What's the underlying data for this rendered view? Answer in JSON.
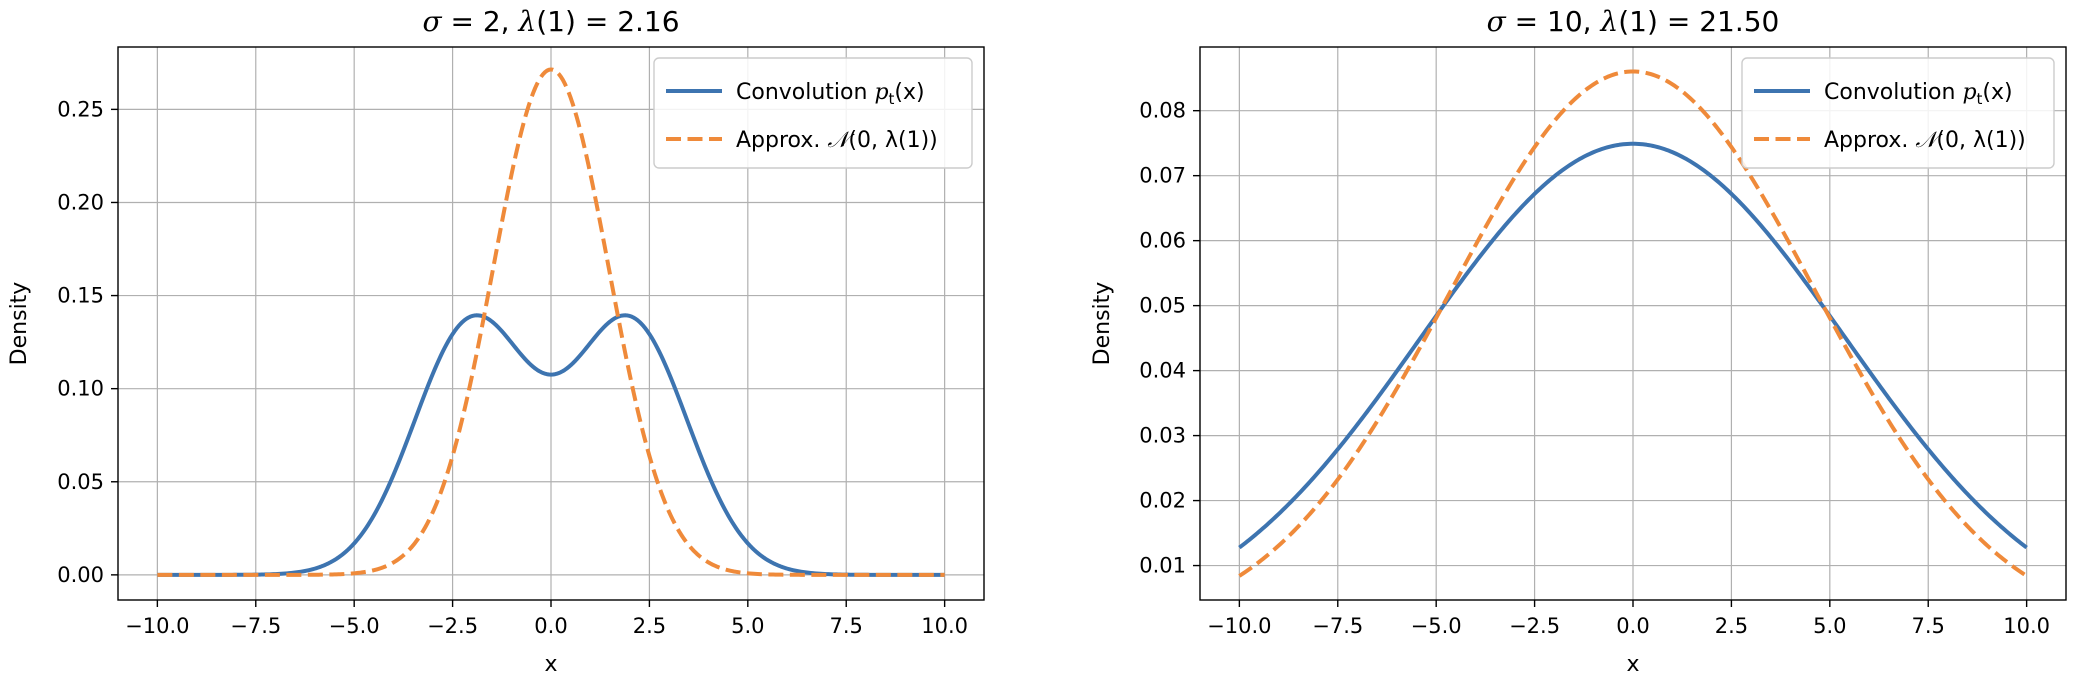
{
  "chart_data": [
    {
      "type": "line",
      "title": {
        "sigma_symbol": "σ",
        "sigma_value": "2",
        "lambda_symbol": "λ",
        "lambda_arg": "1",
        "lambda_value": "2.16"
      },
      "xlabel": "x",
      "ylabel": "Density",
      "xlim": [
        -11.0,
        11.0
      ],
      "ylim": [
        -0.0135,
        0.2835
      ],
      "grid": true,
      "legend_position": "upper right",
      "xticks": [
        -10.0,
        -7.5,
        -5.0,
        -2.5,
        0.0,
        2.5,
        5.0,
        7.5,
        10.0
      ],
      "xtick_labels": [
        "−10.0",
        "−7.5",
        "−5.0",
        "−2.5",
        "0.0",
        "2.5",
        "5.0",
        "7.5",
        "10.0"
      ],
      "yticks": [
        0.0,
        0.05,
        0.1,
        0.15,
        0.2,
        0.25
      ],
      "ytick_labels": [
        "0.00",
        "0.05",
        "0.10",
        "0.15",
        "0.20",
        "0.25"
      ],
      "series": [
        {
          "legend_prefix": "Convolution ",
          "legend_math": "p",
          "legend_sub": "t",
          "legend_suffix": "(x)",
          "color": "#3d74b0",
          "dash": "solid",
          "model": "mixture",
          "mixture_centers": [
            -2.0,
            2.0
          ],
          "mixture_sd": 1.47
        },
        {
          "legend_prefix": "Approx. ",
          "legend_math": "𝒩",
          "legend_sub": "",
          "legend_suffix": "(0, λ(1))",
          "color": "#ef8a3a",
          "dash": "dashed",
          "model": "normal",
          "mean": 0.0,
          "variance": 2.16
        }
      ]
    },
    {
      "type": "line",
      "title": {
        "sigma_symbol": "σ",
        "sigma_value": "10",
        "lambda_symbol": "λ",
        "lambda_arg": "1",
        "lambda_value": "21.50"
      },
      "xlabel": "x",
      "ylabel": "Density",
      "xlim": [
        -11.0,
        11.0
      ],
      "ylim": [
        0.0047,
        0.0898
      ],
      "grid": true,
      "legend_position": "upper right",
      "xticks": [
        -10.0,
        -7.5,
        -5.0,
        -2.5,
        0.0,
        2.5,
        5.0,
        7.5,
        10.0
      ],
      "xtick_labels": [
        "−10.0",
        "−7.5",
        "−5.0",
        "−2.5",
        "0.0",
        "2.5",
        "5.0",
        "7.5",
        "10.0"
      ],
      "yticks": [
        0.01,
        0.02,
        0.03,
        0.04,
        0.05,
        0.06,
        0.07,
        0.08
      ],
      "ytick_labels": [
        "0.01",
        "0.02",
        "0.03",
        "0.04",
        "0.05",
        "0.06",
        "0.07",
        "0.08"
      ],
      "series": [
        {
          "legend_prefix": "Convolution ",
          "legend_math": "p",
          "legend_sub": "t",
          "legend_suffix": "(x)",
          "color": "#3d74b0",
          "dash": "solid",
          "model": "mixture",
          "mixture_centers": [
            -2.0,
            2.0
          ],
          "mixture_sd": 4.9
        },
        {
          "legend_prefix": "Approx. ",
          "legend_math": "𝒩",
          "legend_sub": "",
          "legend_suffix": "(0, λ(1))",
          "color": "#ef8a3a",
          "dash": "dashed",
          "model": "normal",
          "mean": 0.0,
          "variance": 21.5
        }
      ]
    }
  ]
}
